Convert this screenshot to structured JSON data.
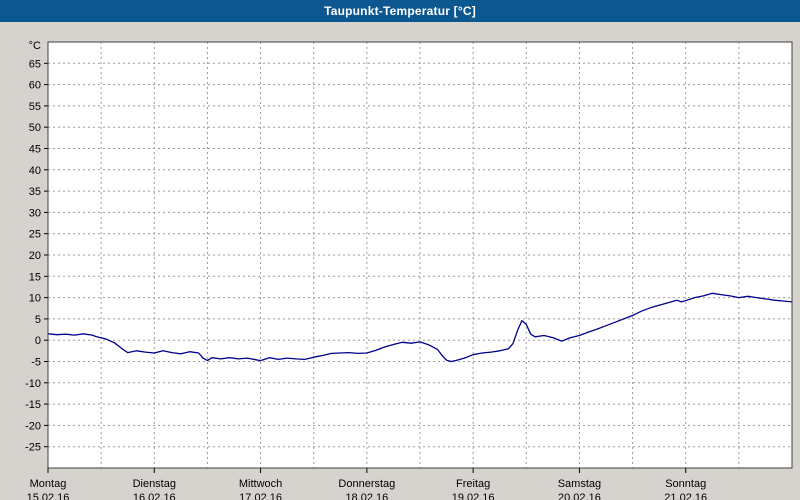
{
  "window": {
    "title": "Taupunkt-Temperatur [°C]"
  },
  "colors": {
    "titlebar_bg": "#0d5791",
    "titlebar_text": "#ffffff",
    "page_bg": "#d6d3ce",
    "plot_bg": "#ffffff",
    "grid": "#9b9b9b",
    "border": "#404040",
    "line": "#00008c",
    "text": "#000000"
  },
  "chart_data": {
    "type": "line",
    "title": "Taupunkt-Temperatur [°C]",
    "ylabel_unit": "°C",
    "ylim": [
      -30,
      70
    ],
    "yticks": [
      65,
      60,
      55,
      50,
      45,
      40,
      35,
      30,
      25,
      20,
      15,
      10,
      5,
      0,
      -5,
      -10,
      -15,
      -20,
      -25
    ],
    "x_hours_total": 168,
    "x_gridline_step_hours": 12,
    "x_daytick_step_hours": 24,
    "grid": true,
    "legend": false,
    "days": [
      {
        "name": "Montag",
        "date": "15.02.16"
      },
      {
        "name": "Dienstag",
        "date": "16.02.16"
      },
      {
        "name": "Mittwoch",
        "date": "17.02.16"
      },
      {
        "name": "Donnerstag",
        "date": "18.02.16"
      },
      {
        "name": "Freitag",
        "date": "19.02.16"
      },
      {
        "name": "Samstag",
        "date": "20.02.16"
      },
      {
        "name": "Sonntag",
        "date": "21.02.16"
      }
    ],
    "series": [
      {
        "name": "Taupunkt-Temperatur",
        "color": "#00008c",
        "points": [
          [
            0,
            1.5
          ],
          [
            2,
            1.3
          ],
          [
            4,
            1.4
          ],
          [
            6,
            1.2
          ],
          [
            8,
            1.5
          ],
          [
            10,
            1.2
          ],
          [
            11,
            0.8
          ],
          [
            13,
            0.3
          ],
          [
            15,
            -0.6
          ],
          [
            17,
            -2.2
          ],
          [
            18,
            -2.9
          ],
          [
            20,
            -2.5
          ],
          [
            22,
            -2.8
          ],
          [
            24,
            -3.0
          ],
          [
            26,
            -2.5
          ],
          [
            28,
            -2.9
          ],
          [
            30,
            -3.2
          ],
          [
            32,
            -2.7
          ],
          [
            34,
            -3.0
          ],
          [
            35,
            -4.2
          ],
          [
            36,
            -4.8
          ],
          [
            37,
            -4.1
          ],
          [
            39,
            -4.4
          ],
          [
            41,
            -4.1
          ],
          [
            43,
            -4.4
          ],
          [
            45,
            -4.2
          ],
          [
            47,
            -4.6
          ],
          [
            48,
            -4.8
          ],
          [
            50,
            -4.1
          ],
          [
            52,
            -4.5
          ],
          [
            54,
            -4.2
          ],
          [
            56,
            -4.4
          ],
          [
            58,
            -4.5
          ],
          [
            60,
            -4.0
          ],
          [
            62,
            -3.6
          ],
          [
            64,
            -3.1
          ],
          [
            66,
            -3.0
          ],
          [
            68,
            -2.9
          ],
          [
            70,
            -3.1
          ],
          [
            72,
            -3.0
          ],
          [
            74,
            -2.4
          ],
          [
            76,
            -1.6
          ],
          [
            78,
            -1.0
          ],
          [
            80,
            -0.5
          ],
          [
            82,
            -0.7
          ],
          [
            84,
            -0.4
          ],
          [
            86,
            -1.1
          ],
          [
            88,
            -2.2
          ],
          [
            89,
            -3.6
          ],
          [
            90,
            -4.7
          ],
          [
            91,
            -5.0
          ],
          [
            92,
            -4.8
          ],
          [
            94,
            -4.2
          ],
          [
            96,
            -3.4
          ],
          [
            98,
            -3.0
          ],
          [
            100,
            -2.8
          ],
          [
            102,
            -2.5
          ],
          [
            104,
            -2.0
          ],
          [
            105,
            -0.8
          ],
          [
            106,
            2.2
          ],
          [
            107,
            4.6
          ],
          [
            108,
            3.7
          ],
          [
            109,
            1.4
          ],
          [
            110,
            0.8
          ],
          [
            112,
            1.1
          ],
          [
            114,
            0.6
          ],
          [
            116,
            -0.2
          ],
          [
            118,
            0.6
          ],
          [
            120,
            1.1
          ],
          [
            122,
            1.9
          ],
          [
            124,
            2.6
          ],
          [
            126,
            3.4
          ],
          [
            128,
            4.2
          ],
          [
            130,
            5.0
          ],
          [
            132,
            5.8
          ],
          [
            134,
            6.8
          ],
          [
            136,
            7.6
          ],
          [
            138,
            8.2
          ],
          [
            140,
            8.8
          ],
          [
            142,
            9.4
          ],
          [
            143,
            9.0
          ],
          [
            144,
            9.3
          ],
          [
            146,
            10.0
          ],
          [
            148,
            10.4
          ],
          [
            150,
            11.0
          ],
          [
            152,
            10.7
          ],
          [
            154,
            10.4
          ],
          [
            156,
            10.0
          ],
          [
            158,
            10.3
          ],
          [
            160,
            10.0
          ],
          [
            162,
            9.7
          ],
          [
            164,
            9.4
          ],
          [
            166,
            9.2
          ],
          [
            168,
            9.0
          ]
        ]
      }
    ]
  }
}
